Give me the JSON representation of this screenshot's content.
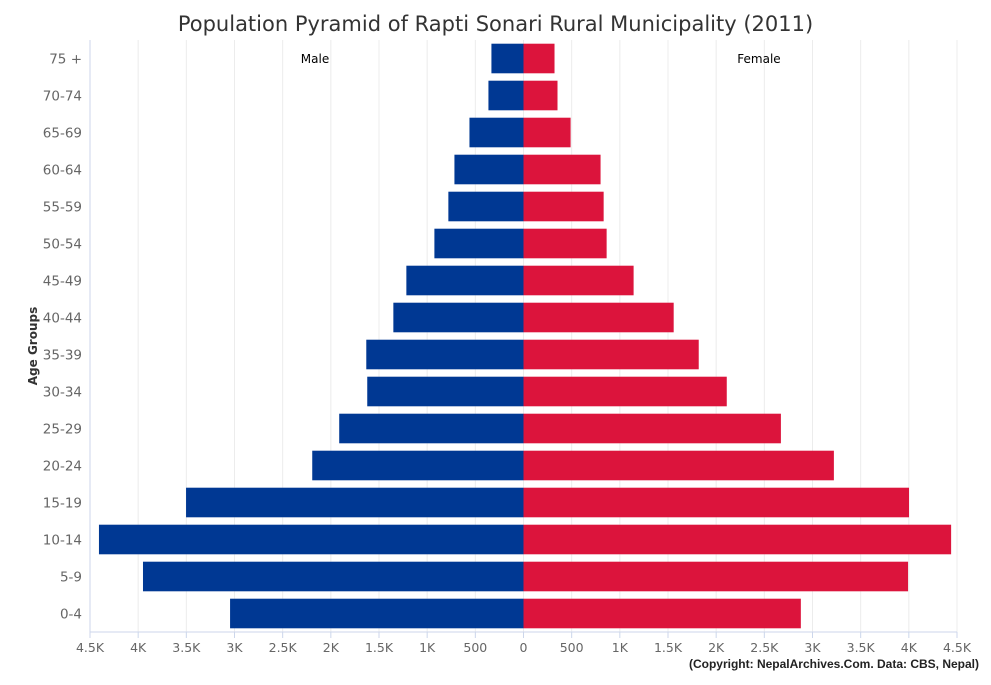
{
  "chart_data": {
    "type": "bar",
    "orientation": "horizontal-pyramid",
    "title": "Population Pyramid of Rapti Sonari Rural Municipality (2011)",
    "ylabel": "Age Groups",
    "xlabel": "",
    "xlim": [
      -4500,
      4500
    ],
    "x_ticks": [
      "4.5K",
      "4K",
      "3.5K",
      "3K",
      "2.5K",
      "2K",
      "1.5K",
      "1K",
      "500",
      "0",
      "500",
      "1K",
      "1.5K",
      "2K",
      "2.5K",
      "3K",
      "3.5K",
      "4K",
      "4.5K"
    ],
    "grid": true,
    "legend": "in-plot labels top",
    "categories": [
      "75 +",
      "70-74",
      "65-69",
      "60-64",
      "55-59",
      "50-54",
      "45-49",
      "40-44",
      "35-39",
      "30-34",
      "25-29",
      "20-24",
      "15-19",
      "10-14",
      "5-9",
      "0-4"
    ],
    "series": [
      {
        "name": "Male",
        "color": "#003893",
        "values": [
          333,
          364,
          561,
          717,
          780,
          925,
          1216,
          1351,
          1632,
          1622,
          1913,
          2193,
          3503,
          4407,
          3950,
          3046
        ]
      },
      {
        "name": "Female",
        "color": "#DC143C",
        "values": [
          322,
          353,
          489,
          800,
          832,
          863,
          1143,
          1559,
          1819,
          2110,
          2672,
          3222,
          4002,
          4439,
          3992,
          2879
        ]
      }
    ],
    "credit": "(Copyright: NepalArchives.Com. Data: CBS, Nepal)"
  }
}
